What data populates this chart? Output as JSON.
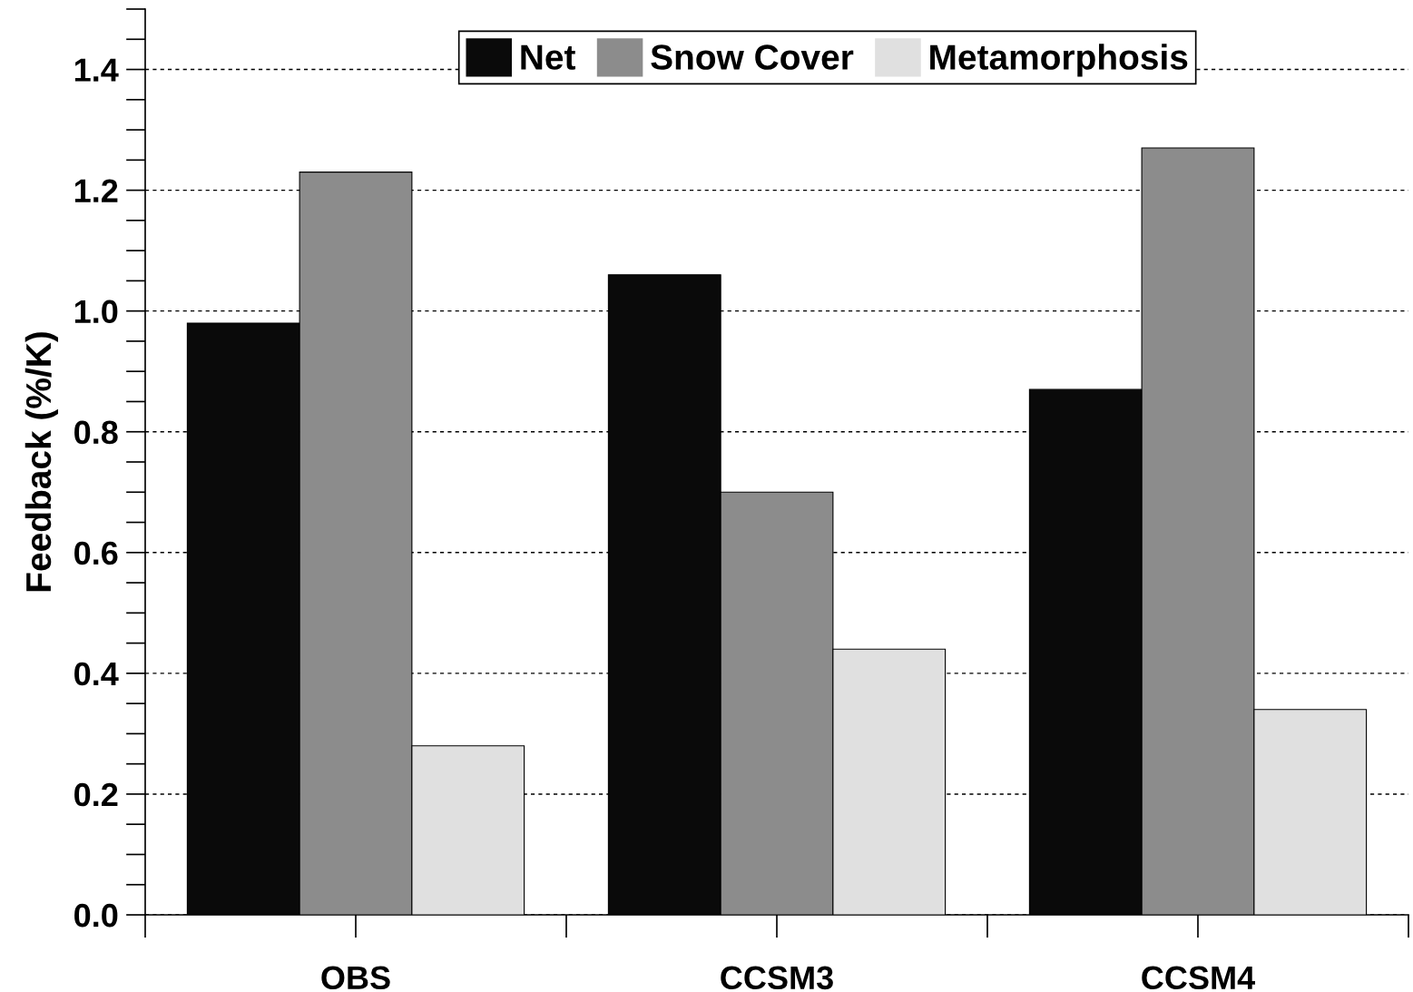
{
  "chart_data": {
    "type": "bar",
    "ylabel": "Feedback (%/K)",
    "categories": [
      "OBS",
      "CCSM3",
      "CCSM4"
    ],
    "series": [
      {
        "name": "Net",
        "color": "#0a0a0a",
        "values": [
          0.98,
          1.06,
          0.87
        ]
      },
      {
        "name": "Snow Cover",
        "color": "#8c8c8c",
        "values": [
          1.23,
          0.7,
          1.27
        ]
      },
      {
        "name": "Metamorphosis",
        "color": "#e0e0e0",
        "values": [
          0.28,
          0.44,
          0.34
        ]
      }
    ],
    "ylim": [
      0.0,
      1.5
    ],
    "yticks": [
      {
        "value": 0.0,
        "label": "0.0"
      },
      {
        "value": 0.2,
        "label": "0.2"
      },
      {
        "value": 0.4,
        "label": "0.4"
      },
      {
        "value": 0.6,
        "label": "0.6"
      },
      {
        "value": 0.8,
        "label": "0.8"
      },
      {
        "value": 1.0,
        "label": "1.0"
      },
      {
        "value": 1.2,
        "label": "1.2"
      },
      {
        "value": 1.4,
        "label": "1.4"
      }
    ],
    "grid": "y",
    "legend": "top"
  }
}
